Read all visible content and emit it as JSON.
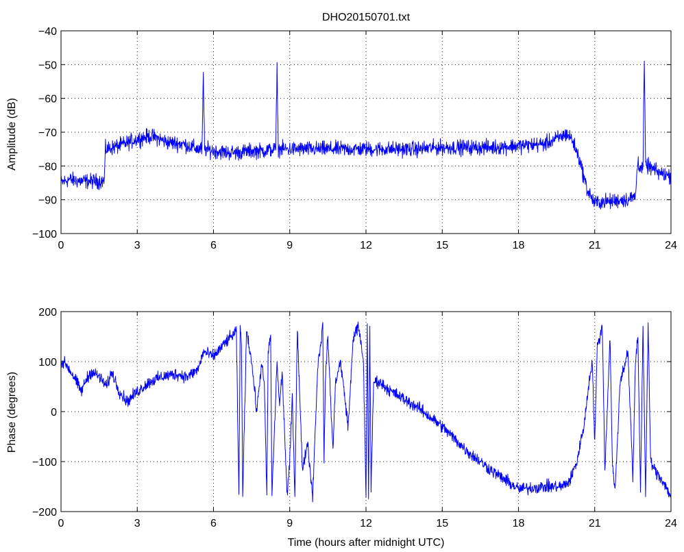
{
  "chart_data": [
    {
      "type": "line",
      "title": "DHO20150701.txt",
      "xlabel": "",
      "ylabel": "Amplitude (dB)",
      "xlim": [
        0,
        24
      ],
      "ylim": [
        -100,
        -40
      ],
      "xticks": [
        "0",
        "3",
        "6",
        "9",
        "12",
        "15",
        "18",
        "21",
        "24"
      ],
      "yticks": [
        "−40",
        "−50",
        "−60",
        "−70",
        "−80",
        "−90",
        "−100"
      ],
      "grid": true,
      "color": "#0000ff",
      "noise": 2.2,
      "series": [
        {
          "x": [
            0,
            0.3,
            0.8,
            1.2,
            1.7,
            1.75,
            1.8,
            2.3,
            3.0,
            3.5,
            3.7,
            4.2,
            4.8,
            5.4,
            5.55,
            5.6,
            5.65,
            6.0,
            6.5,
            7.0,
            7.5,
            8.0,
            8.45,
            8.5,
            8.55,
            9.0,
            10,
            11,
            12,
            13,
            14,
            15,
            16,
            17,
            18,
            19,
            19.5,
            19.9,
            20.1,
            20.4,
            20.7,
            21.0,
            21.3,
            21.7,
            22.0,
            22.3,
            22.6,
            22.7,
            22.75,
            22.9,
            22.95,
            23.0,
            23.1,
            23.5,
            24
          ],
          "y": [
            -85,
            -84,
            -84.5,
            -84.5,
            -84.5,
            -75,
            -75,
            -74,
            -72,
            -71.2,
            -71.5,
            -73,
            -73.5,
            -75,
            -75,
            -53,
            -75,
            -75.5,
            -76,
            -76,
            -75.5,
            -75.5,
            -75,
            -50.5,
            -75,
            -75,
            -75,
            -75,
            -75,
            -75,
            -75,
            -74.5,
            -74.5,
            -74.5,
            -74,
            -73.5,
            -72,
            -70.5,
            -72,
            -78,
            -87,
            -91,
            -90.5,
            -90.5,
            -90,
            -90,
            -89,
            -78,
            -80,
            -81,
            -48,
            -80,
            -80,
            -82,
            -83
          ]
        }
      ]
    },
    {
      "type": "line",
      "title": "",
      "xlabel": "Time (hours after midnight UTC)",
      "ylabel": "Phase (degrees)",
      "xlim": [
        0,
        24
      ],
      "ylim": [
        -200,
        200
      ],
      "xticks": [
        "0",
        "3",
        "6",
        "9",
        "12",
        "15",
        "18",
        "21",
        "24"
      ],
      "yticks": [
        "200",
        "100",
        "0",
        "−100",
        "−200"
      ],
      "grid": true,
      "color": "#0000ff",
      "noise": 12,
      "series": [
        {
          "x": [
            0,
            0.2,
            0.5,
            0.8,
            1.0,
            1.2,
            1.5,
            1.8,
            2.0,
            2.3,
            2.6,
            3.0,
            3.5,
            4.0,
            4.5,
            5.0,
            5.4,
            5.6,
            6.0,
            6.5,
            6.9,
            7.0,
            7.05,
            7.1,
            7.15,
            7.3,
            7.5,
            7.7,
            7.9,
            8.0,
            8.1,
            8.15,
            8.25,
            8.3,
            8.5,
            8.6,
            8.7,
            8.9,
            9.0,
            9.1,
            9.2,
            9.3,
            9.5,
            9.7,
            9.9,
            10.1,
            10.3,
            10.35,
            10.4,
            10.5,
            10.7,
            10.8,
            11.0,
            11.3,
            11.5,
            11.7,
            11.9,
            12.0,
            12.05,
            12.1,
            12.15,
            12.2,
            12.3,
            12.5,
            13.0,
            14.0,
            15.0,
            16.0,
            17.0,
            18.0,
            19.0,
            19.7,
            20.0,
            20.3,
            20.6,
            20.8,
            20.9,
            21.0,
            21.1,
            21.3,
            21.4,
            21.6,
            21.7,
            21.8,
            22.0,
            22.3,
            22.4,
            22.5,
            22.6,
            22.7,
            22.8,
            22.9,
            23.0,
            23.1,
            23.2,
            23.4,
            23.7,
            24
          ],
          "y": [
            100,
            95,
            70,
            40,
            65,
            80,
            70,
            50,
            80,
            40,
            20,
            40,
            60,
            70,
            75,
            70,
            85,
            120,
            110,
            140,
            160,
            -175,
            170,
            140,
            -170,
            165,
            100,
            0,
            100,
            50,
            -170,
            120,
            150,
            -170,
            100,
            10,
            80,
            -170,
            -100,
            30,
            -170,
            170,
            -120,
            -60,
            -170,
            90,
            170,
            -100,
            60,
            150,
            -80,
            60,
            100,
            -30,
            150,
            170,
            100,
            -170,
            175,
            -170,
            170,
            -160,
            60,
            60,
            40,
            10,
            -30,
            -80,
            -120,
            -155,
            -150,
            -150,
            -140,
            -100,
            -20,
            70,
            100,
            -60,
            130,
            170,
            -120,
            150,
            -110,
            -160,
            60,
            120,
            0,
            -140,
            100,
            150,
            -160,
            175,
            -170,
            175,
            -100,
            -120,
            -140,
            -170
          ]
        }
      ]
    }
  ]
}
